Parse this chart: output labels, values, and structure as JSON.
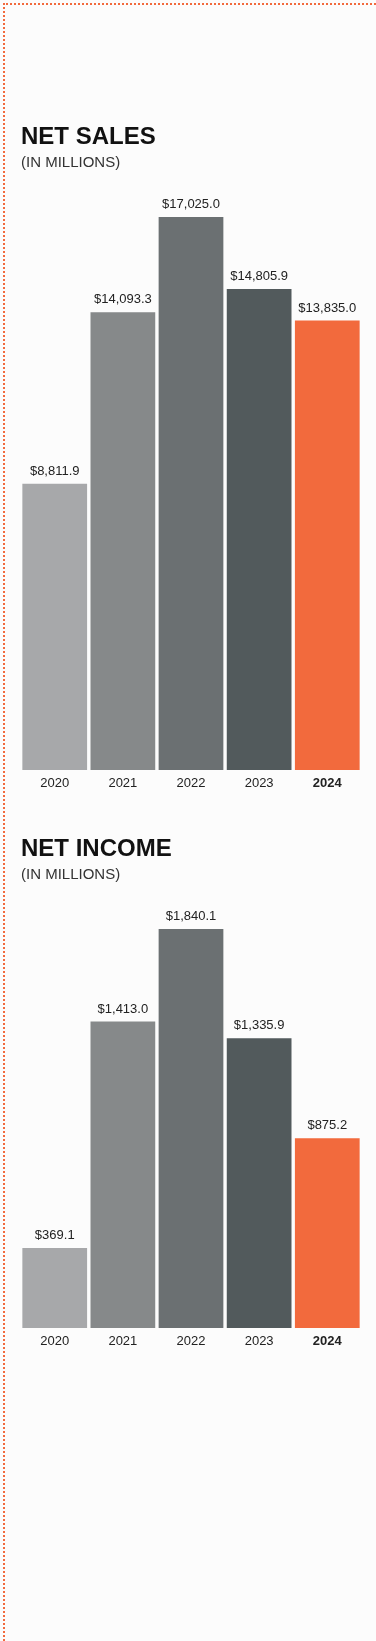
{
  "chart_data": [
    {
      "type": "bar",
      "title": "NET SALES",
      "subtitle": "(IN MILLIONS)",
      "categories": [
        "2020",
        "2021",
        "2022",
        "2023",
        "2024"
      ],
      "values": [
        8811.9,
        14093.3,
        17025.0,
        14805.9,
        13835.0
      ],
      "colors": [
        "#a7a8aa",
        "#86898a",
        "#6b7072",
        "#525a5c",
        "#f26a3d"
      ],
      "value_labels": [
        "$8,811.9",
        "$14,093.3",
        "$17,025.0",
        "$14,805.9",
        "$13,835.0"
      ]
    },
    {
      "type": "bar",
      "title": "NET INCOME",
      "subtitle": "(IN MILLIONS)",
      "categories": [
        "2020",
        "2021",
        "2022",
        "2023",
        "2024"
      ],
      "values": [
        369.1,
        1413.0,
        1840.1,
        1335.9,
        875.2
      ],
      "colors": [
        "#a7a8aa",
        "#86898a",
        "#6b7072",
        "#525a5c",
        "#f26a3d"
      ],
      "value_labels": [
        "$369.1",
        "$1,413.0",
        "$1,840.1",
        "$1,335.9",
        "$875.2"
      ]
    }
  ]
}
